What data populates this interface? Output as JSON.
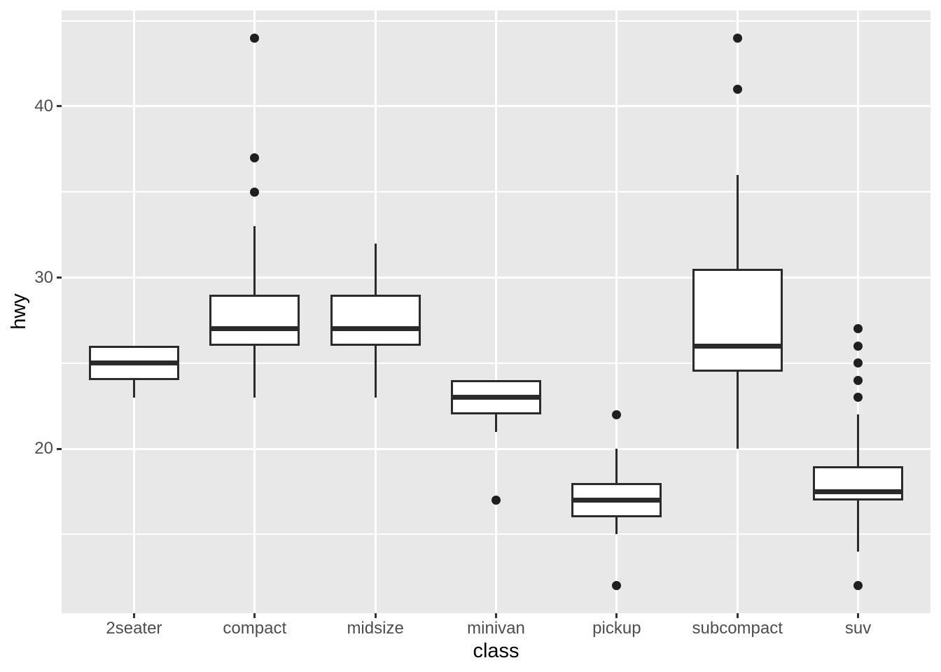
{
  "chart_data": {
    "type": "boxplot",
    "title": "",
    "xlabel": "class",
    "ylabel": "hwy",
    "categories": [
      "2seater",
      "compact",
      "midsize",
      "minivan",
      "pickup",
      "subcompact",
      "suv"
    ],
    "series": [
      {
        "category": "2seater",
        "lower_whisker": 23,
        "q1": 24,
        "median": 25,
        "q3": 26,
        "upper_whisker": 26,
        "outliers": []
      },
      {
        "category": "compact",
        "lower_whisker": 23,
        "q1": 26,
        "median": 27,
        "q3": 29,
        "upper_whisker": 33,
        "outliers": [
          35,
          37,
          44
        ]
      },
      {
        "category": "midsize",
        "lower_whisker": 23,
        "q1": 26,
        "median": 27,
        "q3": 29,
        "upper_whisker": 32,
        "outliers": []
      },
      {
        "category": "minivan",
        "lower_whisker": 21,
        "q1": 22,
        "median": 23,
        "q3": 24,
        "upper_whisker": 24,
        "outliers": [
          17
        ]
      },
      {
        "category": "pickup",
        "lower_whisker": 15,
        "q1": 16,
        "median": 17,
        "q3": 18,
        "upper_whisker": 20,
        "outliers": [
          12,
          22
        ]
      },
      {
        "category": "subcompact",
        "lower_whisker": 20,
        "q1": 24.5,
        "median": 26,
        "q3": 30.5,
        "upper_whisker": 36,
        "outliers": [
          41,
          44
        ]
      },
      {
        "category": "suv",
        "lower_whisker": 14,
        "q1": 17,
        "median": 17.5,
        "q3": 19,
        "upper_whisker": 22,
        "outliers": [
          12,
          23,
          24,
          25,
          26,
          27
        ]
      }
    ],
    "y_axis": {
      "tick_labels": [
        "20",
        "30",
        "40"
      ],
      "ticks": [
        20,
        30,
        40
      ],
      "minor_gridlines": [
        15,
        25,
        35,
        45
      ],
      "ylim": [
        10.4,
        45.6
      ]
    },
    "layout_hints": {
      "grid": "on",
      "legend": "none",
      "panel_bg": "#E8E8E8",
      "grid_color": "#FFFFFF",
      "box_stroke": "#2B2B2B",
      "box_fill": "#FFFFFF",
      "outlier_color": "#1F1F1F",
      "tick_label_color": "#4D4D4D",
      "axis_title_color": "#000000"
    }
  }
}
